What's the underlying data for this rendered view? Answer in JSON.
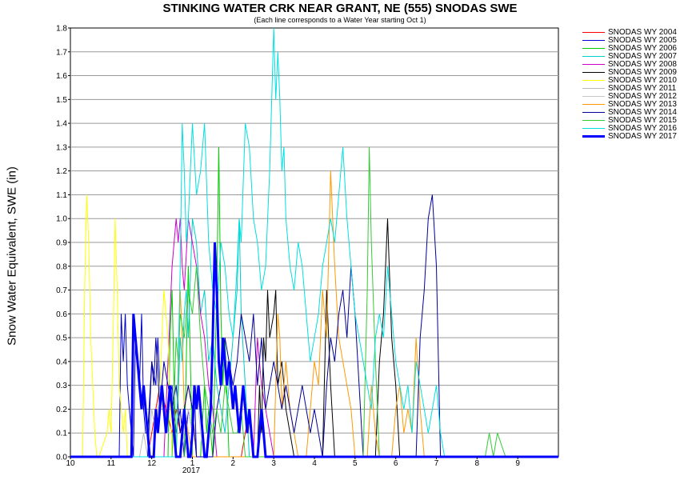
{
  "chart_data": {
    "type": "line",
    "title": "STINKING WATER CRK NEAR GRANT, NE (555) SNODAS SWE",
    "subtitle": "(Each line corresponds to a Water Year starting Oct 1)",
    "xlabel": "",
    "ylabel": "Snow Water Equivalent, SWE (in)",
    "x_ticks": [
      "10",
      "11",
      "12",
      "1",
      "2",
      "3",
      "4",
      "5",
      "6",
      "7",
      "8",
      "9"
    ],
    "x_year_label": "2017",
    "y_ticks": [
      "0.0",
      "0.1",
      "0.2",
      "0.3",
      "0.4",
      "0.5",
      "0.6",
      "0.7",
      "0.8",
      "0.9",
      "1.0",
      "1.1",
      "1.2",
      "1.3",
      "1.4",
      "1.5",
      "1.6",
      "1.7",
      "1.8"
    ],
    "ylim": [
      0,
      1.8
    ],
    "xlim": [
      0,
      12
    ],
    "grid": true,
    "legend_position": "right",
    "series": [
      {
        "name": "SNODAS WY 2004",
        "color": "#ff0000",
        "width": 1,
        "x": [
          0,
          1.9,
          2.0,
          2.1,
          2.2,
          2.35,
          2.5,
          2.6,
          2.7,
          2.9,
          3.0,
          3.1,
          4.2,
          4.3,
          4.4,
          4.5,
          5,
          12
        ],
        "y": [
          0,
          0,
          0.1,
          0.2,
          0.3,
          0.2,
          0.1,
          0.2,
          0.1,
          0.3,
          0.2,
          0,
          0,
          0.1,
          0.2,
          0,
          0,
          0
        ]
      },
      {
        "name": "SNODAS WY 2005",
        "color": "#0000cc",
        "width": 1,
        "x": [
          0,
          1.2,
          1.25,
          1.3,
          1.35,
          1.4,
          1.45,
          1.5,
          1.55,
          1.6,
          1.7,
          1.75,
          1.8,
          1.85,
          1.9,
          2.0,
          2.1,
          2.15,
          2.2,
          2.3,
          2.35,
          2.4,
          2.5,
          2.6,
          2.7,
          2.75,
          2.8,
          2.9,
          3.0,
          3.05,
          3.1,
          12
        ],
        "y": [
          0,
          0,
          0.6,
          0.4,
          0.6,
          0.3,
          0.2,
          0.1,
          0,
          0.5,
          0.3,
          0.6,
          0.2,
          0.1,
          0.1,
          0.4,
          0.3,
          0.5,
          0.3,
          0.2,
          0.1,
          0.2,
          0.3,
          0.1,
          0.2,
          0.1,
          0,
          0.2,
          0.1,
          0.3,
          0,
          0
        ]
      },
      {
        "name": "SNODAS WY 2006",
        "color": "#00cc00",
        "width": 1,
        "x": [
          0,
          2.4,
          2.45,
          2.5,
          2.55,
          2.6,
          2.8,
          2.9,
          3.0,
          3.2,
          3.3,
          3.35,
          3.4,
          3.5,
          3.6,
          3.65,
          3.7,
          3.75,
          3.8,
          3.9,
          4.0,
          12
        ],
        "y": [
          0,
          0,
          0.5,
          0.7,
          0.3,
          0,
          0,
          0.8,
          0,
          0,
          0.3,
          0.1,
          0.2,
          0,
          0.7,
          1.3,
          0.6,
          0.3,
          0.5,
          0,
          0,
          0
        ]
      },
      {
        "name": "SNODAS WY 2007",
        "color": "#00cccc",
        "width": 1,
        "x": [
          0,
          2.6,
          2.7,
          2.75,
          2.8,
          2.85,
          2.9,
          3.0,
          3.1,
          3.2,
          3.3,
          3.4,
          3.5,
          3.6,
          3.7,
          3.8,
          3.9,
          4.0,
          4.1,
          4.15,
          4.2,
          4.3,
          4.4,
          12
        ],
        "y": [
          0,
          0,
          0.5,
          0.4,
          0.6,
          0.7,
          0.5,
          1.0,
          0.9,
          0.6,
          0.7,
          0.4,
          0.5,
          0.3,
          0.2,
          0.1,
          0.3,
          0.5,
          0.7,
          1.0,
          0.6,
          0.3,
          0,
          0
        ]
      },
      {
        "name": "SNODAS WY 2008",
        "color": "#cc00cc",
        "width": 1,
        "x": [
          0,
          2.3,
          2.4,
          2.5,
          2.6,
          2.65,
          2.7,
          2.75,
          2.8,
          2.9,
          3.0,
          3.1,
          3.2,
          3.3,
          3.4,
          3.5,
          3.6,
          4.5,
          4.6,
          4.7,
          4.8,
          4.9,
          5.0,
          12
        ],
        "y": [
          0,
          0,
          0.4,
          0.8,
          1.0,
          0.9,
          1.0,
          0.8,
          0.7,
          1.0,
          0.9,
          0.8,
          0.6,
          0.5,
          0.3,
          0.2,
          0,
          0,
          0.5,
          0.3,
          0.2,
          0.1,
          0,
          0
        ]
      },
      {
        "name": "SNODAS WY 2009",
        "color": "#000000",
        "width": 1,
        "x": [
          0,
          4.6,
          4.65,
          4.7,
          4.75,
          4.8,
          4.85,
          4.9,
          5.0,
          5.05,
          5.1,
          5.2,
          5.3,
          5.5,
          6.2,
          6.3,
          6.4,
          6.5,
          7.5,
          7.6,
          7.7,
          7.8,
          7.9,
          8.0,
          8.1,
          12
        ],
        "y": [
          0,
          0,
          0.3,
          0.1,
          0.5,
          0.4,
          0.7,
          0.5,
          0.6,
          0.7,
          0.3,
          0.4,
          0.2,
          0,
          0,
          0.7,
          0.3,
          0,
          0,
          0.4,
          0.6,
          1.0,
          0.5,
          0.3,
          0,
          0
        ]
      },
      {
        "name": "SNODAS WY 2010",
        "color": "#ffff00",
        "width": 1,
        "x": [
          0,
          0.3,
          0.35,
          0.4,
          0.45,
          0.5,
          0.55,
          0.6,
          0.65,
          0.7,
          0.9,
          0.95,
          1.0,
          1.05,
          1.1,
          1.15,
          1.2,
          1.3,
          1.35,
          1.4,
          1.5,
          1.6,
          2.0,
          2.1,
          2.2,
          2.3,
          2.4,
          2.5,
          12
        ],
        "y": [
          0,
          0,
          0.7,
          1.1,
          0.9,
          0.5,
          0.3,
          0.1,
          0,
          0,
          0.1,
          0.2,
          0.1,
          0.5,
          1.0,
          0.7,
          0.3,
          0.1,
          0.2,
          0,
          0,
          0,
          0,
          0.1,
          0.3,
          0.7,
          0.5,
          0,
          0
        ]
      },
      {
        "name": "SNODAS WY 2011",
        "color": "#bbbbbb",
        "width": 1,
        "x": [
          0,
          1.7,
          1.8,
          1.9,
          2.0,
          2.1,
          2.2,
          2.3,
          2.4,
          2.5,
          2.6,
          12
        ],
        "y": [
          0,
          0,
          0.1,
          0,
          0.2,
          0.1,
          0.3,
          0.2,
          0.1,
          0.1,
          0,
          0
        ]
      },
      {
        "name": "SNODAS WY 2012",
        "color": "#c8c8c8",
        "width": 1,
        "x": [
          0,
          2.7,
          2.8,
          2.9,
          3.0,
          3.1,
          3.2,
          3.3,
          12
        ],
        "y": [
          0,
          0,
          0.1,
          0.2,
          0.1,
          0.3,
          0.1,
          0,
          0
        ]
      },
      {
        "name": "SNODAS WY 2013",
        "color": "#ff9900",
        "width": 1,
        "x": [
          0,
          2.6,
          2.65,
          2.7,
          2.75,
          2.8,
          2.9,
          3.0,
          5.0,
          5.05,
          5.1,
          5.15,
          5.2,
          5.3,
          5.4,
          5.5,
          5.6,
          5.8,
          5.9,
          6.0,
          6.1,
          6.2,
          6.3,
          6.4,
          6.5,
          6.6,
          6.7,
          6.8,
          6.9,
          7.0,
          7.3,
          7.4,
          7.5,
          7.6,
          7.9,
          8.0,
          8.1,
          8.2,
          8.3,
          8.4,
          8.5,
          8.6,
          8.7,
          12
        ],
        "y": [
          0,
          0,
          0.3,
          0.7,
          0.5,
          0.2,
          0.1,
          0,
          0,
          0.3,
          0.6,
          0.5,
          0.2,
          0.4,
          0.2,
          0.1,
          0,
          0,
          0.2,
          0.4,
          0.3,
          0.7,
          0.5,
          1.2,
          0.8,
          0.5,
          0.4,
          0.3,
          0.2,
          0,
          0,
          0.3,
          0.1,
          0,
          0,
          0.2,
          0.3,
          0.1,
          0.2,
          0.1,
          0.5,
          0.2,
          0,
          0
        ]
      },
      {
        "name": "SNODAS WY 2014",
        "color": "#000099",
        "width": 1,
        "x": [
          0,
          1.9,
          2.0,
          2.05,
          2.1,
          2.2,
          2.25,
          2.3,
          2.4,
          2.5,
          2.6,
          2.7,
          2.8,
          2.9,
          3.0,
          3.1,
          3.5,
          3.6,
          3.7,
          3.8,
          3.9,
          4.0,
          4.1,
          4.2,
          4.3,
          4.4,
          4.5,
          4.6,
          4.7,
          4.8,
          4.9,
          5.0,
          5.1,
          5.2,
          5.3,
          5.4,
          5.5,
          5.6,
          5.7,
          5.8,
          5.9,
          6.0,
          6.1,
          6.2,
          6.3,
          6.4,
          6.5,
          6.6,
          6.7,
          6.8,
          6.9,
          7.0,
          7.1,
          7.2,
          8.5,
          8.6,
          8.7,
          8.8,
          8.9,
          9.0,
          9.1,
          12
        ],
        "y": [
          0,
          0,
          0.4,
          0.3,
          0.5,
          0.2,
          0.3,
          0.4,
          0.3,
          0.2,
          0.3,
          0.1,
          0.2,
          0.3,
          0.2,
          0,
          0,
          0.2,
          0.3,
          0.5,
          0.4,
          0.3,
          0.4,
          0.6,
          0.5,
          0.4,
          0.6,
          0.3,
          0.5,
          0.2,
          0.3,
          0.4,
          0.3,
          0.2,
          0.3,
          0.2,
          0.1,
          0.2,
          0.3,
          0.2,
          0.1,
          0.2,
          0.1,
          0,
          0.3,
          0.5,
          0.4,
          0.6,
          0.7,
          0.5,
          0.8,
          0.6,
          0.3,
          0,
          0,
          0.5,
          0.7,
          1.0,
          1.1,
          0.8,
          0,
          0
        ]
      },
      {
        "name": "SNODAS WY 2015",
        "color": "#33cc33",
        "width": 1,
        "x": [
          0,
          2.5,
          2.6,
          2.65,
          2.7,
          2.8,
          2.9,
          3.0,
          3.1,
          3.2,
          3.3,
          3.4,
          3.5,
          3.6,
          3.7,
          3.8,
          3.9,
          4.0,
          4.1,
          4.2,
          4.3,
          7.2,
          7.3,
          7.35,
          7.4,
          7.5,
          7.6,
          10.2,
          10.3,
          10.4,
          10.5,
          10.6,
          10.7,
          12
        ],
        "y": [
          0,
          0,
          0.5,
          0.4,
          0.6,
          0.5,
          0.7,
          0.6,
          0.8,
          0.5,
          0.3,
          0.2,
          0.1,
          0.2,
          0.1,
          0.3,
          0.2,
          0.1,
          0.1,
          0.2,
          0,
          0,
          0.7,
          1.3,
          0.9,
          0.4,
          0,
          0,
          0.1,
          0,
          0.1,
          0.05,
          0,
          0
        ]
      },
      {
        "name": "SNODAS WY 2016",
        "color": "#00e0e0",
        "width": 1,
        "x": [
          0,
          2.6,
          2.7,
          2.75,
          2.8,
          2.85,
          2.9,
          3.0,
          3.1,
          3.2,
          3.3,
          3.4,
          3.5,
          3.6,
          3.7,
          3.8,
          3.9,
          4.0,
          4.1,
          4.15,
          4.2,
          4.3,
          4.4,
          4.5,
          4.6,
          4.7,
          4.8,
          4.9,
          5.0,
          5.05,
          5.1,
          5.15,
          5.2,
          5.25,
          5.3,
          5.4,
          5.5,
          5.6,
          5.7,
          5.8,
          5.9,
          6.0,
          6.1,
          6.2,
          6.3,
          6.4,
          6.5,
          6.6,
          6.7,
          6.8,
          6.9,
          7.0,
          7.1,
          7.2,
          7.3,
          7.4,
          7.5,
          7.6,
          7.7,
          7.8,
          7.9,
          8.0,
          8.1,
          8.2,
          8.3,
          8.4,
          8.5,
          8.6,
          8.7,
          8.8,
          8.9,
          9.0,
          9.1,
          9.2,
          12
        ],
        "y": [
          0,
          0,
          0.8,
          1.4,
          1.2,
          0.9,
          1.0,
          1.4,
          1.1,
          1.2,
          1.4,
          0.9,
          0.7,
          0.6,
          0.9,
          0.8,
          0.6,
          0.5,
          0.8,
          1.0,
          0.9,
          1.4,
          1.3,
          1.0,
          0.9,
          0.7,
          0.8,
          1.2,
          1.8,
          1.5,
          1.7,
          1.5,
          1.2,
          1.3,
          1.0,
          0.8,
          0.7,
          0.9,
          0.8,
          0.6,
          0.4,
          0.5,
          0.6,
          0.8,
          0.9,
          1.0,
          0.9,
          1.1,
          1.3,
          1.0,
          0.8,
          0.6,
          0.5,
          0.4,
          0.3,
          0.2,
          0.5,
          0.6,
          0.5,
          0.8,
          0.6,
          0.4,
          0.3,
          0.2,
          0.3,
          0.1,
          0.4,
          0.3,
          0.2,
          0.1,
          0.2,
          0.3,
          0.1,
          0,
          0
        ]
      },
      {
        "name": "SNODAS WY 2017",
        "color": "#0000ff",
        "width": 3,
        "x": [
          0,
          1.5,
          1.55,
          1.6,
          1.65,
          1.7,
          1.75,
          1.8,
          1.85,
          1.9,
          1.95,
          2.0,
          2.05,
          2.1,
          2.15,
          2.2,
          2.25,
          2.3,
          2.35,
          2.4,
          2.45,
          2.5,
          2.55,
          2.6,
          2.65,
          2.7,
          2.75,
          2.8,
          2.85,
          2.9,
          2.95,
          3.0,
          3.05,
          3.1,
          3.15,
          3.2,
          3.25,
          3.3,
          3.35,
          3.4,
          3.45,
          3.5,
          3.55,
          3.6,
          3.65,
          3.7,
          3.75,
          3.8,
          3.85,
          3.9,
          3.95,
          4.0,
          4.05,
          4.1,
          4.15,
          4.2,
          4.25,
          4.3,
          4.35,
          4.4,
          4.45,
          4.5,
          4.55,
          4.6,
          4.65,
          4.7,
          4.75,
          4.8,
          4.85,
          4.9,
          4.95,
          5.0,
          5.05,
          5.1,
          12
        ],
        "y": [
          0,
          0,
          0.6,
          0.5,
          0.4,
          0.3,
          0.2,
          0.3,
          0.2,
          0.1,
          0,
          0,
          0,
          0.2,
          0.1,
          0.2,
          0.3,
          0.2,
          0.1,
          0.2,
          0.3,
          0.2,
          0.1,
          0,
          0,
          0,
          0.1,
          0.2,
          0.1,
          0,
          0,
          0.1,
          0.3,
          0.2,
          0.3,
          0.2,
          0.1,
          0,
          0,
          0.1,
          0.2,
          0.5,
          0.9,
          0.7,
          0.4,
          0.3,
          0.5,
          0.4,
          0.3,
          0.4,
          0.3,
          0.2,
          0.3,
          0.2,
          0.1,
          0.2,
          0.3,
          0.2,
          0.1,
          0.2,
          0.1,
          0,
          0,
          0,
          0.1,
          0.2,
          0.1,
          0,
          0,
          0,
          0,
          0,
          0,
          0,
          0
        ]
      }
    ]
  }
}
